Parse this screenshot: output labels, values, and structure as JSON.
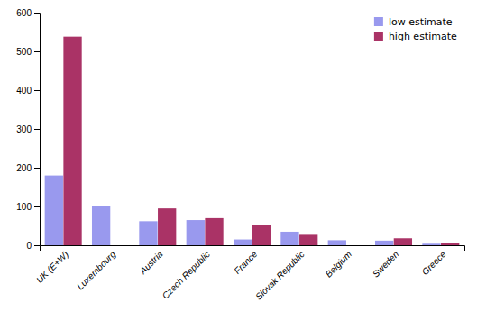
{
  "chart_data": {
    "type": "bar",
    "categories": [
      "UK (E+W)",
      "Luxembourg",
      "Austria",
      "Czech Republic",
      "France",
      "Slovak Republic",
      "Belgium",
      "Sweden",
      "Greece"
    ],
    "series": [
      {
        "name": "low estimate",
        "color": "#9999ee",
        "values": [
          180,
          102,
          62,
          65,
          15,
          35,
          13,
          12,
          4
        ]
      },
      {
        "name": "high estimate",
        "color": "#aa3366",
        "values": [
          538,
          0,
          95,
          70,
          53,
          27,
          0,
          18,
          5
        ]
      }
    ],
    "ylim": [
      0,
      600
    ],
    "yticks": [
      0,
      100,
      200,
      300,
      400,
      500,
      600
    ],
    "legend": "upper right",
    "grid": false
  }
}
